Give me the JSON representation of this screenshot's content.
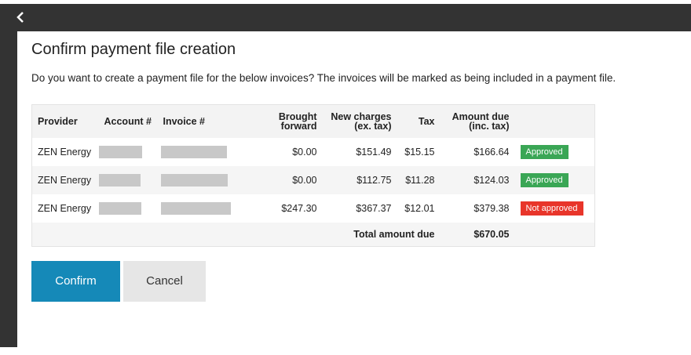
{
  "dialog": {
    "title": "Confirm payment file creation",
    "message": "Do you want to create a payment file for the below invoices? The invoices will be marked as being included in a payment file."
  },
  "table": {
    "columns": [
      "Provider",
      "Account #",
      "Invoice #",
      "Brought forward",
      "New charges\n(ex. tax)",
      "Tax",
      "Amount due\n(inc. tax)"
    ],
    "rows": [
      {
        "provider": "ZEN Energy",
        "brought_forward": "$0.00",
        "new_charges": "$151.49",
        "tax": "$15.15",
        "amount_due": "$166.64",
        "status": "Approved"
      },
      {
        "provider": "ZEN Energy",
        "brought_forward": "$0.00",
        "new_charges": "$112.75",
        "tax": "$11.28",
        "amount_due": "$124.03",
        "status": "Approved"
      },
      {
        "provider": "ZEN Energy",
        "brought_forward": "$247.30",
        "new_charges": "$367.37",
        "tax": "$12.01",
        "amount_due": "$379.38",
        "status": "Not approved"
      }
    ],
    "total": {
      "label": "Total amount due",
      "value": "$670.05"
    }
  },
  "buttons": {
    "confirm": "Confirm",
    "cancel": "Cancel"
  }
}
